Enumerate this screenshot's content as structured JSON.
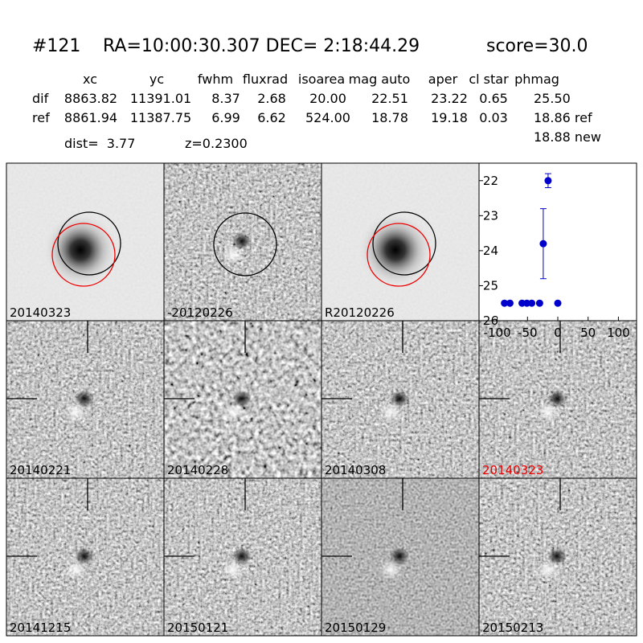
{
  "header": {
    "id": "#121",
    "coords": "RA=10:00:30.307 DEC= 2:18:44.29",
    "score": "score=30.0"
  },
  "table": {
    "columns": [
      "xc",
      "yc",
      "fwhm",
      "fluxrad",
      "isoarea",
      "mag auto",
      "aper",
      "cl star",
      "phmag"
    ],
    "rows": [
      [
        "dif",
        "8863.82",
        "11391.01",
        "8.37",
        "2.68",
        "20.00",
        "22.51",
        "23.22",
        "0.65",
        "25.50"
      ],
      [
        "ref",
        "8861.94",
        "11387.75",
        "6.99",
        "6.62",
        "524.00",
        "18.78",
        "19.18",
        "0.03",
        "18.86 ref"
      ]
    ],
    "extra": "18.88 new"
  },
  "info": {
    "dist": "dist=  3.77",
    "z": "z=0.2300"
  },
  "panels": [
    "20140323",
    "-20120226",
    "R20120226",
    "20140221",
    "20140228",
    "20140308",
    "20140323",
    "20141215",
    "20150121",
    "20150129",
    "20150213"
  ],
  "chart_data": {
    "type": "scatter",
    "x": [
      -88,
      -79,
      -59,
      -51,
      -43,
      -30,
      0,
      -24,
      -16
    ],
    "values": [
      25.5,
      25.5,
      25.5,
      25.5,
      25.5,
      25.5,
      25.5,
      23.8,
      22.0
    ],
    "errors": [
      null,
      null,
      null,
      null,
      null,
      null,
      null,
      1.0,
      0.2
    ],
    "color": "#0000cc",
    "xlim": [
      -130,
      130
    ],
    "ylim": [
      26,
      21.5
    ],
    "xticks": [
      -100,
      -50,
      0,
      50,
      100
    ],
    "yticks": [
      22,
      23,
      24,
      25,
      26
    ]
  }
}
